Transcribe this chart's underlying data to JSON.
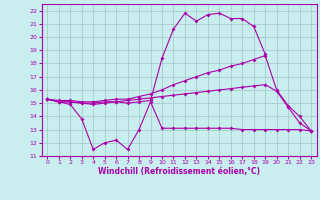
{
  "xlabel": "Windchill (Refroidissement éolien,°C)",
  "bg_color": "#c8eef0",
  "grid_color": "#aacccc",
  "line_color": "#aa00aa",
  "xlim": [
    -0.5,
    23.5
  ],
  "ylim": [
    11,
    22.5
  ],
  "yticks": [
    11,
    12,
    13,
    14,
    15,
    16,
    17,
    18,
    19,
    20,
    21,
    22
  ],
  "xticks": [
    0,
    1,
    2,
    3,
    4,
    5,
    6,
    7,
    8,
    9,
    10,
    11,
    12,
    13,
    14,
    15,
    16,
    17,
    18,
    19,
    20,
    21,
    22,
    23
  ],
  "line_wavy_x": [
    0,
    1,
    2,
    3,
    4,
    5,
    6,
    7,
    8,
    9,
    10,
    11,
    12,
    13,
    14,
    15,
    16,
    17,
    18,
    19,
    20,
    21,
    22,
    23
  ],
  "line_wavy_y": [
    15.3,
    15.1,
    14.9,
    13.8,
    11.5,
    12.0,
    12.2,
    11.5,
    13.0,
    15.1,
    13.1,
    13.1,
    13.1,
    13.1,
    13.1,
    13.1,
    13.1,
    13.0,
    13.0,
    13.0,
    13.0,
    13.0,
    13.0,
    12.9
  ],
  "line_peak_x": [
    0,
    1,
    2,
    3,
    4,
    5,
    6,
    7,
    8,
    9,
    10,
    11,
    12,
    13,
    14,
    15,
    16,
    17,
    18,
    19
  ],
  "line_peak_y": [
    15.3,
    15.1,
    15.1,
    15.0,
    14.9,
    15.0,
    15.1,
    15.0,
    15.1,
    15.2,
    18.4,
    20.6,
    21.8,
    21.2,
    21.7,
    21.8,
    21.4,
    21.4,
    20.8,
    18.7
  ],
  "line_ascend_x": [
    0,
    1,
    2,
    3,
    4,
    5,
    6,
    7,
    8,
    9,
    10,
    11,
    12,
    13,
    14,
    15,
    16,
    17,
    18,
    19,
    20,
    21,
    22,
    23
  ],
  "line_ascend_y": [
    15.3,
    15.2,
    15.2,
    15.1,
    15.1,
    15.2,
    15.3,
    15.3,
    15.5,
    15.7,
    16.0,
    16.4,
    16.7,
    17.0,
    17.3,
    17.5,
    17.8,
    18.0,
    18.3,
    18.6,
    16.0,
    14.8,
    14.0,
    12.9
  ],
  "line_flat_x": [
    0,
    1,
    2,
    3,
    4,
    5,
    6,
    7,
    8,
    9,
    10,
    11,
    12,
    13,
    14,
    15,
    16,
    17,
    18,
    19,
    20,
    21,
    22,
    23
  ],
  "line_flat_y": [
    15.3,
    15.1,
    15.1,
    15.0,
    15.0,
    15.1,
    15.1,
    15.2,
    15.3,
    15.4,
    15.5,
    15.6,
    15.7,
    15.8,
    15.9,
    16.0,
    16.1,
    16.2,
    16.3,
    16.4,
    15.9,
    14.7,
    13.5,
    12.9
  ]
}
